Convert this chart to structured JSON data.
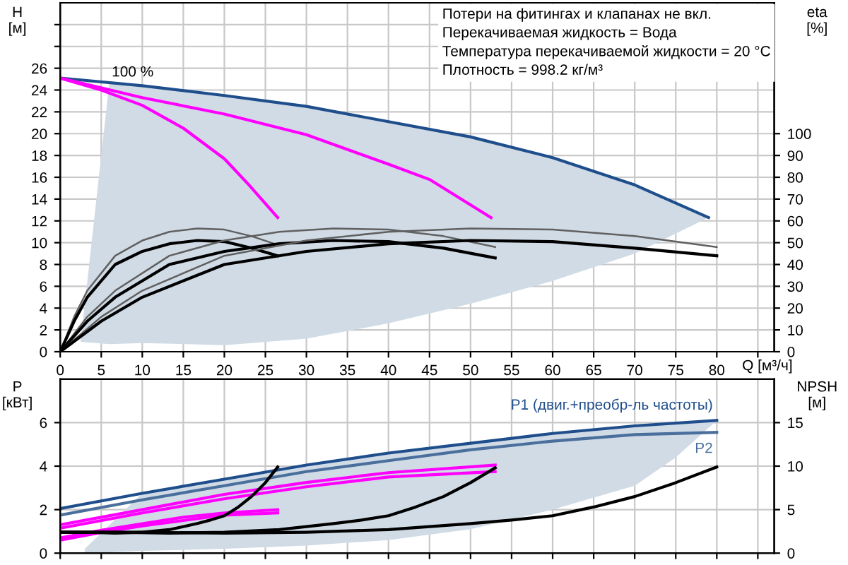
{
  "chart_data": [
    {
      "type": "line",
      "xlabel": "Q [м³/ч]",
      "ylabel": "H\n[м]",
      "y2label": "eta\n[%]",
      "xlim": [
        0,
        87
      ],
      "xticks": [
        0,
        5,
        10,
        15,
        20,
        25,
        30,
        35,
        40,
        45,
        50,
        55,
        60,
        65,
        70,
        75,
        80,
        {
          "value": 85,
          "label": null
        }
      ],
      "ylim": [
        0,
        32
      ],
      "yticks": [
        0,
        2,
        4,
        6,
        8,
        10,
        12,
        14,
        16,
        18,
        20,
        22,
        24,
        26,
        {
          "value": 28,
          "label": null
        },
        {
          "value": 30,
          "label": null
        }
      ],
      "y2lim": [
        0,
        160
      ],
      "y2ticks": [
        0,
        10,
        20,
        30,
        40,
        50,
        60,
        70,
        80,
        90,
        100
      ],
      "grid": true,
      "legend": false,
      "marker": "none",
      "line_style": "solid",
      "annotations": [
        {
          "text": "100 %",
          "x": 7,
          "y": 24.6
        },
        "Потери на фитингах и клапанах не вкл.",
        "Перекачиваемая жидкость = Вода",
        "Температура перекачиваемой жидкости = 20 °C",
        "Плотность = 998.2 кг/м³"
      ],
      "series": [
        {
          "type": "area",
          "color": "#d0dbe6",
          "x": [
            2.5,
            6,
            10,
            20,
            30,
            40,
            50,
            60,
            70,
            79,
            70,
            60,
            50,
            40,
            30,
            20,
            10,
            6,
            2.5
          ],
          "values": [
            1.0,
            24.8,
            24.4,
            23.5,
            22.5,
            21.1,
            19.7,
            17.8,
            15.3,
            12.3,
            9.0,
            6.5,
            4.4,
            2.6,
            1.2,
            0.6,
            0.8,
            0.7,
            0.9
          ]
        },
        {
          "color": "#1f4e8c",
          "x": [
            0,
            10,
            20,
            30,
            40,
            50,
            60,
            70,
            79
          ],
          "values": [
            25.1,
            24.4,
            23.5,
            22.5,
            21.1,
            19.7,
            17.8,
            15.3,
            12.3
          ]
        },
        {
          "color": "#ff00ff",
          "x": [
            0,
            10,
            20,
            30,
            40,
            45,
            52.5
          ],
          "values": [
            25.1,
            23.3,
            21.8,
            19.9,
            17.2,
            15.8,
            12.3
          ]
        },
        {
          "color": "#ff00ff",
          "x": [
            0,
            5,
            10,
            15,
            20,
            23,
            26.5
          ],
          "values": [
            25.1,
            24.0,
            22.6,
            20.5,
            17.7,
            15.3,
            12.3
          ]
        },
        {
          "color": "#606060",
          "axis": "y2",
          "x": [
            0,
            1.7,
            3.3,
            6.7,
            10,
            13.3,
            16.7,
            20,
            23.3,
            26.5
          ],
          "values": [
            0,
            16,
            28,
            44,
            51,
            55,
            56.5,
            56,
            53,
            49
          ]
        },
        {
          "color": "#000000",
          "axis": "y2",
          "x": [
            0,
            1.7,
            3.3,
            6.7,
            10,
            13.3,
            16.7,
            20,
            23.3,
            26.5
          ],
          "values": [
            0,
            14,
            25,
            40,
            46,
            49.5,
            51,
            50.5,
            47.5,
            44
          ]
        },
        {
          "color": "#606060",
          "axis": "y2",
          "x": [
            0,
            3.3,
            6.7,
            13.3,
            20,
            26.7,
            33.3,
            40,
            46.7,
            53
          ],
          "values": [
            0,
            16,
            28,
            44,
            51,
            55,
            56.5,
            56,
            53,
            48
          ]
        },
        {
          "color": "#000000",
          "axis": "y2",
          "x": [
            0,
            3.3,
            6.7,
            13.3,
            20,
            26.7,
            33.3,
            40,
            46.7,
            53
          ],
          "values": [
            0,
            14,
            25,
            40,
            46,
            49.5,
            51,
            50.5,
            47.5,
            43
          ]
        },
        {
          "color": "#606060",
          "axis": "y2",
          "x": [
            0,
            5,
            10,
            20,
            30,
            40,
            50,
            60,
            70,
            80
          ],
          "values": [
            0,
            16,
            28,
            44,
            51,
            55,
            56.5,
            56,
            53,
            48
          ]
        },
        {
          "color": "#000000",
          "axis": "y2",
          "x": [
            0,
            5,
            10,
            20,
            30,
            40,
            50,
            60,
            70,
            80
          ],
          "values": [
            0,
            14,
            25,
            40,
            46,
            49.5,
            51,
            50.5,
            47.5,
            44
          ]
        }
      ]
    },
    {
      "type": "line",
      "ylabel": "P\n[кВт]",
      "y2label": "NPSH\n[м]",
      "xlim": [
        0,
        87
      ],
      "xticks": [
        0,
        5,
        10,
        15,
        20,
        25,
        30,
        35,
        40,
        45,
        50,
        55,
        60,
        65,
        70,
        75,
        80,
        85
      ],
      "ylim": [
        0,
        8
      ],
      "yticks": [
        0,
        2,
        4,
        6
      ],
      "y2lim": [
        0,
        20
      ],
      "y2ticks": [
        0,
        5,
        10,
        15
      ],
      "tick_labels": "y",
      "grid": true,
      "legend": false,
      "marker": "none",
      "line_style": "solid",
      "series": [
        {
          "type": "area",
          "color": "#d0dbe6",
          "x": [
            3,
            10,
            20,
            30,
            40,
            50,
            60,
            70,
            75,
            80,
            75,
            70,
            60,
            50,
            40,
            30,
            20,
            10,
            3
          ],
          "values": [
            0.2,
            2.75,
            3.4,
            4.05,
            4.6,
            5.05,
            5.5,
            5.85,
            6.0,
            6.1,
            4.4,
            3.1,
            2.0,
            1.1,
            0.6,
            0.35,
            0.2,
            0.1,
            0.0
          ]
        },
        {
          "name": "P1 (двиг.+преобр-ль частоты)",
          "color": "#1f4e8c",
          "x": [
            0,
            10,
            20,
            30,
            40,
            50,
            60,
            70,
            80
          ],
          "values": [
            2.05,
            2.75,
            3.4,
            4.05,
            4.6,
            5.05,
            5.5,
            5.85,
            6.1
          ]
        },
        {
          "name": "P2",
          "color": "#4a6f9c",
          "x": [
            0,
            10,
            20,
            30,
            40,
            50,
            60,
            70,
            80
          ],
          "values": [
            1.75,
            2.45,
            3.1,
            3.75,
            4.25,
            4.75,
            5.15,
            5.45,
            5.55
          ]
        },
        {
          "color": "#ff00ff",
          "x": [
            0,
            10,
            20,
            30,
            40,
            53
          ],
          "values": [
            1.3,
            2.0,
            2.7,
            3.25,
            3.7,
            4.05
          ]
        },
        {
          "color": "#ff00ff",
          "x": [
            0,
            10,
            20,
            30,
            40,
            53
          ],
          "values": [
            1.15,
            1.85,
            2.5,
            3.05,
            3.5,
            3.75
          ]
        },
        {
          "color": "#ff00ff",
          "x": [
            0,
            5,
            10,
            15,
            20,
            26.5
          ],
          "values": [
            0.7,
            1.05,
            1.35,
            1.65,
            1.85,
            2.0
          ]
        },
        {
          "color": "#ff00ff",
          "x": [
            0,
            5,
            10,
            15,
            20,
            26.5
          ],
          "values": [
            0.6,
            0.95,
            1.25,
            1.5,
            1.75,
            1.85
          ]
        },
        {
          "color": "#000000",
          "axis": "y2",
          "x": [
            0,
            10,
            20,
            30,
            40,
            50,
            55,
            60,
            65,
            70,
            75,
            80
          ],
          "values": [
            2.4,
            2.4,
            2.3,
            2.4,
            2.7,
            3.4,
            3.8,
            4.3,
            5.3,
            6.5,
            8.1,
            9.9
          ]
        },
        {
          "color": "#000000",
          "axis": "y2",
          "x": [
            0,
            6.7,
            13.3,
            20,
            26.7,
            33.3,
            36.7,
            40,
            43.3,
            46.7,
            50,
            53
          ],
          "values": [
            2.4,
            2.4,
            2.3,
            2.4,
            2.7,
            3.4,
            3.8,
            4.3,
            5.3,
            6.5,
            8.1,
            9.8
          ]
        },
        {
          "color": "#000000",
          "axis": "y2",
          "x": [
            0,
            3.3,
            6.7,
            10,
            13.3,
            16.7,
            18.3,
            20,
            21.7,
            23.3,
            25,
            26.5
          ],
          "values": [
            2.4,
            2.4,
            2.3,
            2.4,
            2.7,
            3.4,
            3.8,
            4.3,
            5.3,
            6.5,
            8.1,
            9.9
          ]
        }
      ]
    }
  ]
}
